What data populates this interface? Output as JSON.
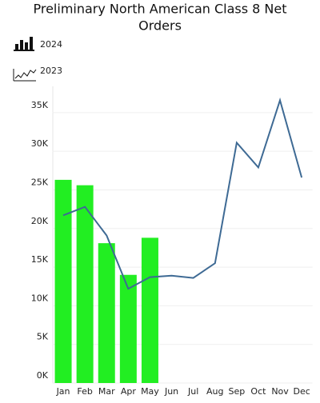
{
  "chart_data": {
    "type": "bar_line",
    "title_lines": [
      "Preliminary North American Class 8 Net",
      "Orders"
    ],
    "categories": [
      "Jan",
      "Feb",
      "Mar",
      "Apr",
      "May",
      "Jun",
      "Jul",
      "Aug",
      "Sep",
      "Oct",
      "Nov",
      "Dec"
    ],
    "series": [
      {
        "name": "2024",
        "type": "bar",
        "color": "#22ee22",
        "values": [
          26300,
          25600,
          18100,
          14000,
          18800,
          null,
          null,
          null,
          null,
          null,
          null,
          null
        ]
      },
      {
        "name": "2023",
        "type": "line",
        "color": "#3e6a94",
        "values": [
          21700,
          22800,
          19100,
          12200,
          13700,
          13900,
          13600,
          15500,
          31100,
          27900,
          36600,
          26600
        ]
      }
    ],
    "ylim": [
      0,
      38400
    ],
    "yticks": [
      {
        "value": 0,
        "label": "0K"
      },
      {
        "value": 5000,
        "label": "5K"
      },
      {
        "value": 10000,
        "label": "10K"
      },
      {
        "value": 15000,
        "label": "15K"
      },
      {
        "value": 20000,
        "label": "20K"
      },
      {
        "value": 25000,
        "label": "25K"
      },
      {
        "value": 30000,
        "label": "30K"
      },
      {
        "value": 35000,
        "label": "35K"
      }
    ],
    "grid": true
  }
}
